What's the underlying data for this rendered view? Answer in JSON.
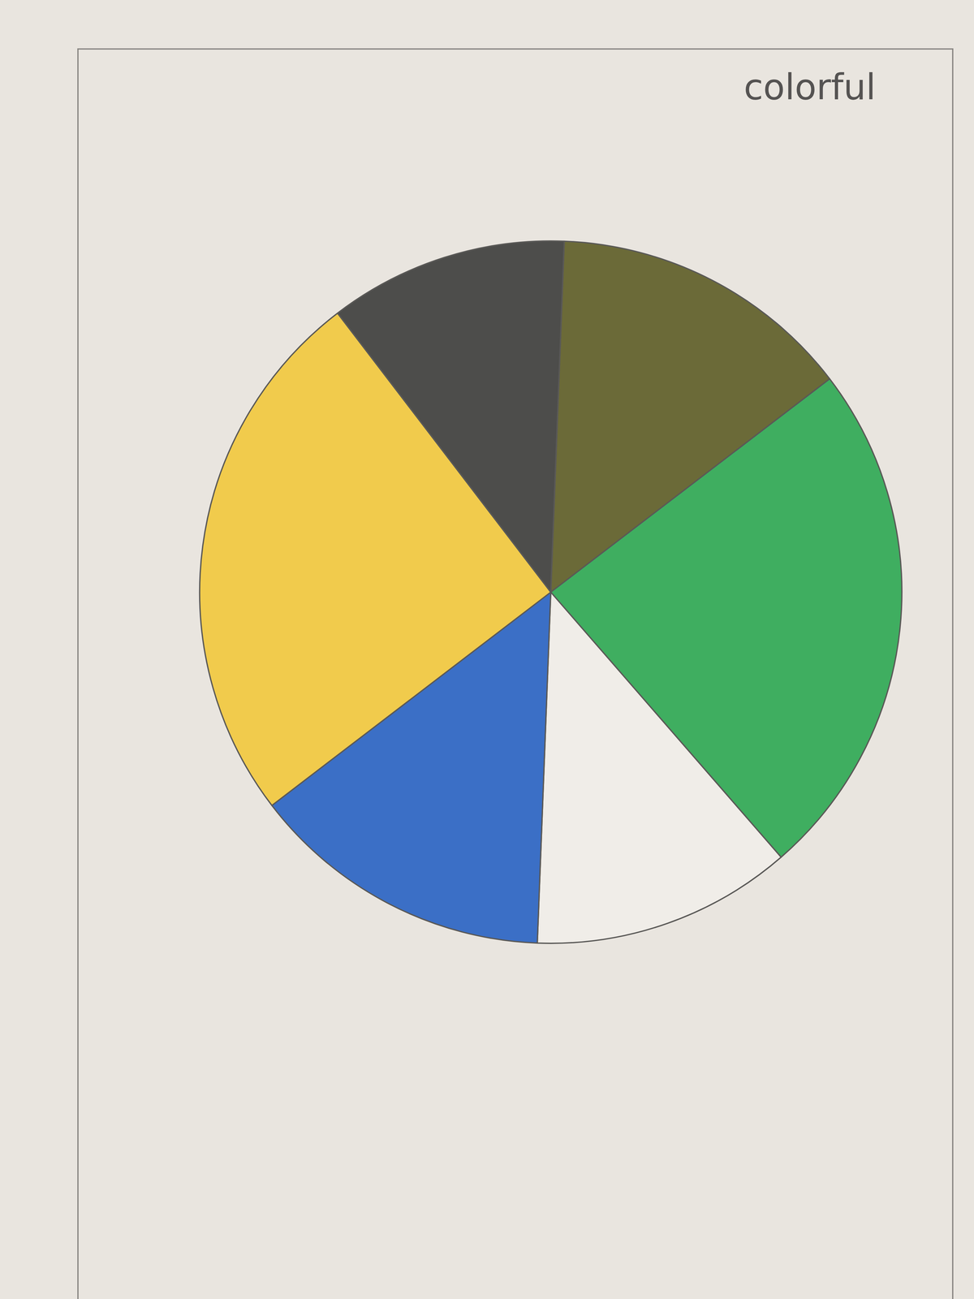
{
  "chart_data": {
    "type": "pie",
    "title": "colorful",
    "values": [
      14,
      24,
      12,
      14,
      25,
      11
    ],
    "colors": [
      "#6b6a38",
      "#3fae60",
      "#f0ede8",
      "#3b6fc6",
      "#f1cb4c",
      "#4d4d4b"
    ]
  }
}
